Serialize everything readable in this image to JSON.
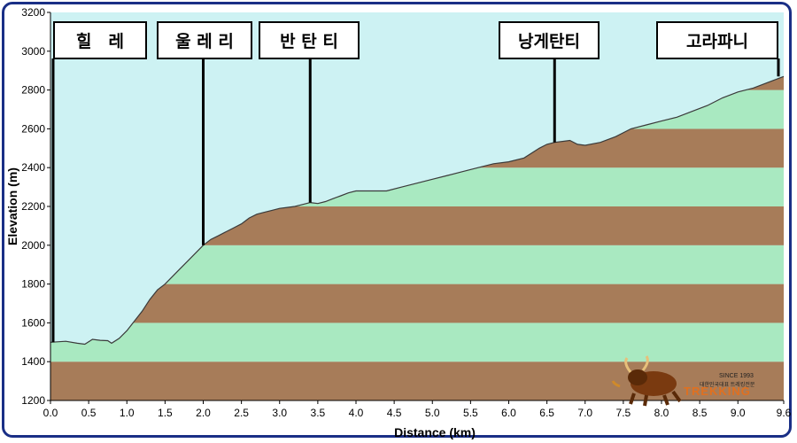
{
  "chart_data": {
    "type": "area",
    "title": "",
    "xlabel": "Distance (km)",
    "ylabel": "Elevation (m)",
    "xlim": [
      0,
      9.6
    ],
    "ylim": [
      1200,
      3200
    ],
    "x_ticks": [
      "0.0",
      "0.5",
      "1.0",
      "1.5",
      "2.0",
      "2.5",
      "3.0",
      "3.5",
      "4.0",
      "4.5",
      "5.0",
      "5.5",
      "6.0",
      "6.5",
      "7.0",
      "7.5",
      "8.0",
      "8.5",
      "9.0",
      "9.6"
    ],
    "y_ticks": [
      "1200",
      "1400",
      "1600",
      "1800",
      "2000",
      "2200",
      "2400",
      "2600",
      "2800",
      "3000",
      "3200"
    ],
    "x": [
      0.0,
      0.2,
      0.35,
      0.45,
      0.55,
      0.65,
      0.75,
      0.8,
      0.9,
      1.0,
      1.1,
      1.2,
      1.3,
      1.4,
      1.5,
      1.6,
      1.7,
      1.8,
      1.9,
      2.0,
      2.1,
      2.2,
      2.3,
      2.4,
      2.5,
      2.6,
      2.7,
      2.8,
      2.9,
      3.0,
      3.1,
      3.2,
      3.3,
      3.4,
      3.5,
      3.6,
      3.7,
      3.8,
      3.9,
      4.0,
      4.2,
      4.4,
      4.6,
      4.8,
      5.0,
      5.2,
      5.4,
      5.6,
      5.8,
      6.0,
      6.2,
      6.4,
      6.5,
      6.6,
      6.8,
      6.9,
      7.0,
      7.2,
      7.4,
      7.6,
      7.8,
      8.0,
      8.2,
      8.4,
      8.6,
      8.8,
      9.0,
      9.2,
      9.4,
      9.6
    ],
    "series": [
      {
        "values": [
          1500,
          1505,
          1495,
          1490,
          1515,
          1510,
          1508,
          1495,
          1520,
          1560,
          1610,
          1660,
          1720,
          1770,
          1800,
          1840,
          1880,
          1920,
          1960,
          2000,
          2030,
          2050,
          2070,
          2090,
          2110,
          2140,
          2160,
          2170,
          2180,
          2190,
          2195,
          2200,
          2210,
          2220,
          2215,
          2225,
          2240,
          2255,
          2270,
          2280,
          2280,
          2280,
          2300,
          2320,
          2340,
          2360,
          2380,
          2400,
          2420,
          2430,
          2450,
          2500,
          2520,
          2530,
          2540,
          2520,
          2515,
          2530,
          2560,
          2600,
          2620,
          2640,
          2660,
          2690,
          2720,
          2760,
          2790,
          2810,
          2840,
          2870
        ]
      }
    ],
    "band_colors": [
      "#a77c59",
      "#a9e9c1"
    ],
    "band_step": 200,
    "sky_color": "#cdf2f3",
    "grid": false,
    "annotations": [
      {
        "label": "힐　레",
        "x": 0.0
      },
      {
        "label": "울 레 리",
        "x": 2.0
      },
      {
        "label": "반 탄 티",
        "x": 3.4
      },
      {
        "label": "낭게탄티",
        "x": 6.6
      },
      {
        "label": "고라파니",
        "x": 9.6
      }
    ]
  },
  "logo": {
    "since": "SINCE 1993",
    "org": "대한민국대표 트레킹전문",
    "brand": "TREKKING"
  }
}
